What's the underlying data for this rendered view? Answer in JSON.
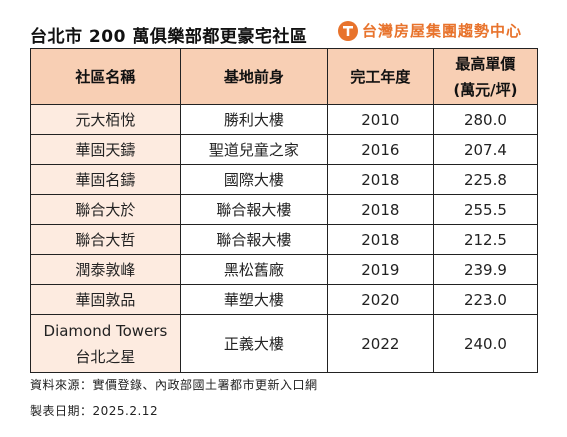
{
  "title": "台北市 200 萬俱樂部都更豪宅社區",
  "brand": {
    "name": "台灣房屋集團趨勢中心",
    "accent": "#e8732c",
    "logo_icon": "taiwan-realty-logo-icon"
  },
  "table": {
    "headers": {
      "community": "社區名稱",
      "former_base": "基地前身",
      "completion_year": "完工年度",
      "max_price_line1": "最高單價",
      "max_price_line2": "(萬元/坪)"
    },
    "rows": [
      {
        "community": "元大栢悅",
        "former_base": "勝利大樓",
        "year": "2010",
        "price": "280.0"
      },
      {
        "community": "華固天鑄",
        "former_base": "聖道兒童之家",
        "year": "2016",
        "price": "207.4"
      },
      {
        "community": "華固名鑄",
        "former_base": "國際大樓",
        "year": "2018",
        "price": "225.8"
      },
      {
        "community": "聯合大於",
        "former_base": "聯合報大樓",
        "year": "2018",
        "price": "255.5"
      },
      {
        "community": "聯合大哲",
        "former_base": "聯合報大樓",
        "year": "2018",
        "price": "212.5"
      },
      {
        "community": "潤泰敦峰",
        "former_base": "黑松舊廠",
        "year": "2019",
        "price": "239.9"
      },
      {
        "community": "華固敦品",
        "former_base": "華塑大樓",
        "year": "2020",
        "price": "223.0"
      }
    ],
    "last_row": {
      "community_line1": "Diamond Towers",
      "community_line2": "台北之星",
      "former_base": "正義大樓",
      "year": "2022",
      "price": "240.0"
    },
    "colors": {
      "header_bg": "#f8cfb4",
      "name_bg": "#fdebe0"
    }
  },
  "footnotes": {
    "source": "資料來源：實價登錄、內政部國土署都市更新入口網",
    "date": "製表日期：2025.2.12"
  }
}
